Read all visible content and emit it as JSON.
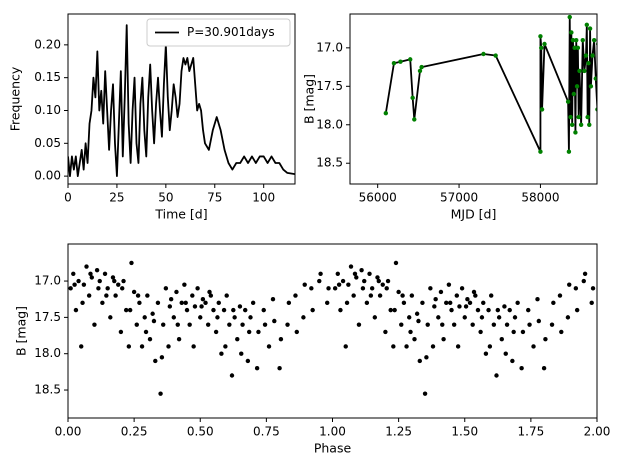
{
  "chart_data": [
    {
      "type": "line",
      "xlabel": "Time [d]",
      "ylabel": "Frequency",
      "legend": "upper right",
      "xlim": [
        0,
        116
      ],
      "ylim": [
        -0.012,
        0.247
      ],
      "xticks": [
        0,
        25,
        50,
        75,
        100
      ],
      "yticks": [
        {
          "value": 0,
          "label": "0.00"
        },
        {
          "value": 0.05,
          "label": "0.05"
        },
        {
          "value": 0.1,
          "label": "0.10"
        },
        {
          "value": 0.15,
          "label": "0.15"
        },
        {
          "value": 0.2,
          "label": "0.20"
        }
      ],
      "x": [
        0,
        1,
        2,
        3,
        4,
        5,
        6,
        7,
        8,
        9,
        10,
        11,
        12,
        13,
        14,
        15,
        16,
        17,
        18,
        19,
        20,
        21,
        22,
        23,
        24,
        25,
        26,
        27,
        28,
        29,
        30,
        31,
        32,
        33,
        34,
        35,
        36,
        37,
        38,
        39,
        40,
        41,
        42,
        43,
        44,
        45,
        46,
        47,
        48,
        49,
        50,
        51,
        52,
        53,
        54,
        55,
        56,
        57,
        58,
        59,
        60,
        61,
        62,
        63,
        64,
        65,
        66,
        67,
        68,
        69,
        70,
        72,
        74,
        76,
        78,
        80,
        82,
        84,
        86,
        88,
        90,
        92,
        94,
        96,
        98,
        100,
        102,
        104,
        106,
        108,
        110,
        112,
        114,
        116
      ],
      "series": [
        {
          "name": "P=30.901days",
          "color": "#000000",
          "values": [
            0.03,
            0.0,
            0.03,
            0.01,
            0.03,
            0.0,
            0.02,
            0.04,
            0.01,
            0.05,
            0.02,
            0.08,
            0.1,
            0.15,
            0.12,
            0.19,
            0.1,
            0.13,
            0.08,
            0.16,
            0.1,
            0.04,
            0.1,
            0.14,
            0.05,
            0.0,
            0.08,
            0.16,
            0.03,
            0.12,
            0.23,
            0.08,
            0.02,
            0.1,
            0.15,
            0.05,
            0.02,
            0.11,
            0.15,
            0.07,
            0.03,
            0.12,
            0.17,
            0.1,
            0.05,
            0.11,
            0.15,
            0.1,
            0.06,
            0.14,
            0.2,
            0.12,
            0.07,
            0.1,
            0.14,
            0.12,
            0.09,
            0.11,
            0.16,
            0.18,
            0.17,
            0.18,
            0.16,
            0.17,
            0.18,
            0.14,
            0.1,
            0.11,
            0.1,
            0.07,
            0.05,
            0.04,
            0.07,
            0.09,
            0.07,
            0.04,
            0.02,
            0.01,
            0.02,
            0.02,
            0.03,
            0.02,
            0.03,
            0.02,
            0.03,
            0.03,
            0.02,
            0.03,
            0.02,
            0.02,
            0.01,
            0.005,
            0.004,
            0.003
          ]
        }
      ]
    },
    {
      "type": "line",
      "xlabel": "MJD [d]",
      "ylabel": "B [mag]",
      "color": "#000000",
      "marker_color": "#008000",
      "xlim": [
        55660,
        58695
      ],
      "ylim": [
        18.77,
        16.56
      ],
      "xticks": [
        56000,
        57000,
        58000
      ],
      "yticks": [
        {
          "value": 17,
          "label": "17.0"
        },
        17.5,
        {
          "value": 18,
          "label": "18.0"
        },
        18.5
      ],
      "x": [
        56100,
        56200,
        56280,
        56400,
        56430,
        56450,
        56520,
        56540,
        57300,
        57450,
        58000,
        58000,
        58010,
        58020,
        58050,
        58340,
        58350,
        58360,
        58370,
        58380,
        58390,
        58400,
        58410,
        58420,
        58430,
        58440,
        58450,
        58460,
        58470,
        58480,
        58500,
        58520,
        58540,
        58560,
        58570,
        58580,
        58590,
        58600,
        58610,
        58620,
        58640,
        58660,
        58680,
        58700,
        58710,
        58720,
        58730,
        58740,
        58750,
        58760,
        58770,
        58780,
        58790
      ],
      "values": [
        17.85,
        17.2,
        17.18,
        17.15,
        17.65,
        17.93,
        17.3,
        17.25,
        17.08,
        17.1,
        18.35,
        16.85,
        17.0,
        17.8,
        16.95,
        17.7,
        18.35,
        16.6,
        17.9,
        16.8,
        18.0,
        16.9,
        17.6,
        17.0,
        18.1,
        16.9,
        17.5,
        17.0,
        17.9,
        17.3,
        18.0,
        16.9,
        17.3,
        17.1,
        16.7,
        17.9,
        17.2,
        18.0,
        16.75,
        17.5,
        17.1,
        16.9,
        17.4,
        17.8,
        16.95,
        17.6,
        16.7,
        17.9,
        17.2,
        17.4,
        16.85,
        17.7,
        17.9
      ]
    },
    {
      "type": "scatter",
      "xlabel": "Phase",
      "ylabel": "B [mag]",
      "color": "#000000",
      "xlim": [
        0,
        2
      ],
      "ylim": [
        18.885,
        16.49
      ],
      "xticks": [
        {
          "value": 0,
          "label": "0.00"
        },
        {
          "value": 0.25,
          "label": "0.25"
        },
        {
          "value": 0.5,
          "label": "0.50"
        },
        {
          "value": 0.75,
          "label": "0.75"
        },
        {
          "value": 1,
          "label": "1.00"
        },
        {
          "value": 1.25,
          "label": "1.25"
        },
        {
          "value": 1.5,
          "label": "1.50"
        },
        {
          "value": 1.75,
          "label": "1.75"
        },
        {
          "value": 2,
          "label": "2.00"
        }
      ],
      "yticks": [
        {
          "value": 17,
          "label": "17.0"
        },
        17.5,
        {
          "value": 18,
          "label": "18.0"
        },
        18.5
      ],
      "x": [
        0.01,
        0.02,
        0.03,
        0.04,
        0.05,
        0.06,
        0.07,
        0.08,
        0.09,
        0.1,
        0.11,
        0.12,
        0.13,
        0.14,
        0.15,
        0.16,
        0.17,
        0.18,
        0.19,
        0.2,
        0.21,
        0.22,
        0.23,
        0.24,
        0.25,
        0.26,
        0.27,
        0.28,
        0.29,
        0.3,
        0.31,
        0.32,
        0.33,
        0.34,
        0.35,
        0.36,
        0.37,
        0.38,
        0.39,
        0.4,
        0.41,
        0.42,
        0.43,
        0.44,
        0.45,
        0.46,
        0.47,
        0.48,
        0.49,
        0.5,
        0.51,
        0.52,
        0.53,
        0.54,
        0.55,
        0.56,
        0.57,
        0.58,
        0.59,
        0.6,
        0.61,
        0.62,
        0.63,
        0.64,
        0.65,
        0.66,
        0.67,
        0.68,
        0.69,
        0.7,
        0.72,
        0.74,
        0.76,
        0.78,
        0.8,
        0.83,
        0.86,
        0.89,
        0.92,
        0.95,
        0.98,
        0.025,
        0.055,
        0.085,
        0.115,
        0.145,
        0.175,
        0.205,
        0.235,
        0.265,
        0.295,
        0.325,
        0.355,
        0.385,
        0.415,
        0.445,
        0.475,
        0.505,
        0.535,
        0.565,
        0.595,
        0.625,
        0.655,
        0.685,
        0.715,
        0.745,
        0.775,
        0.805,
        0.835,
        0.865,
        0.895,
        0.925,
        0.955,
        0.985,
        1.01,
        1.02,
        1.03,
        1.04,
        1.05,
        1.06,
        1.07,
        1.08,
        1.09,
        1.1,
        1.11,
        1.12,
        1.13,
        1.14,
        1.15,
        1.16,
        1.17,
        1.18,
        1.19,
        1.2,
        1.21,
        1.22,
        1.23,
        1.24,
        1.25,
        1.26,
        1.27,
        1.28,
        1.29,
        1.3,
        1.31,
        1.32,
        1.33,
        1.34,
        1.35,
        1.36,
        1.37,
        1.38,
        1.39,
        1.4,
        1.41,
        1.42,
        1.43,
        1.44,
        1.45,
        1.46,
        1.47,
        1.48,
        1.49,
        1.5,
        1.51,
        1.52,
        1.53,
        1.54,
        1.55,
        1.56,
        1.57,
        1.58,
        1.59,
        1.6,
        1.61,
        1.62,
        1.63,
        1.64,
        1.65,
        1.66,
        1.67,
        1.68,
        1.69,
        1.7,
        1.72,
        1.74,
        1.76,
        1.78,
        1.8,
        1.83,
        1.86,
        1.89,
        1.92,
        1.95,
        1.98,
        1.025,
        1.055,
        1.085,
        1.115,
        1.145,
        1.175,
        1.205,
        1.235,
        1.265,
        1.295,
        1.325,
        1.355,
        1.385,
        1.415,
        1.445,
        1.475,
        1.505,
        1.535,
        1.565,
        1.595,
        1.625,
        1.655,
        1.685,
        1.715,
        1.745,
        1.775,
        1.805,
        1.835,
        1.865,
        1.895,
        1.925,
        1.955,
        1.985
      ],
      "y": [
        17.1,
        16.9,
        17.4,
        17.0,
        17.9,
        17.05,
        16.8,
        17.2,
        16.95,
        17.6,
        16.85,
        17.0,
        17.3,
        16.9,
        17.1,
        17.5,
        16.95,
        17.2,
        17.05,
        17.7,
        17.0,
        17.4,
        17.9,
        16.75,
        17.15,
        17.6,
        17.3,
        17.9,
        17.5,
        17.2,
        17.8,
        17.45,
        18.1,
        17.3,
        18.55,
        17.6,
        17.1,
        17.9,
        17.25,
        17.5,
        17.15,
        17.8,
        17.3,
        17.05,
        17.4,
        17.6,
        17.2,
        17.35,
        17.1,
        17.5,
        17.25,
        17.3,
        17.6,
        17.2,
        17.4,
        17.7,
        17.3,
        18.0,
        17.4,
        17.2,
        17.6,
        18.3,
        17.5,
        17.8,
        17.35,
        17.6,
        17.4,
        18.1,
        17.5,
        17.3,
        17.7,
        17.4,
        17.9,
        17.55,
        18.2,
        17.6,
        17.2,
        17.5,
        17.1,
        17.0,
        17.3,
        17.05,
        17.3,
        16.9,
        17.1,
        17.2,
        17.0,
        17.1,
        17.4,
        17.2,
        17.7,
        17.55,
        18.05,
        17.35,
        17.6,
        17.3,
        17.9,
        17.35,
        17.15,
        17.5,
        17.9,
        17.4,
        18.0,
        17.7,
        18.2,
        17.6,
        17.25,
        17.8,
        17.3,
        17.7,
        17.05,
        17.4,
        16.9,
        17.1,
        17.1,
        16.9,
        17.4,
        17.0,
        17.9,
        17.05,
        16.8,
        17.2,
        16.95,
        17.6,
        16.85,
        17.0,
        17.3,
        16.9,
        17.1,
        17.5,
        16.95,
        17.2,
        17.05,
        17.7,
        17.0,
        17.4,
        17.9,
        16.75,
        17.15,
        17.6,
        17.3,
        17.9,
        17.5,
        17.2,
        17.8,
        17.45,
        18.1,
        17.3,
        18.55,
        17.6,
        17.1,
        17.9,
        17.25,
        17.5,
        17.15,
        17.8,
        17.3,
        17.05,
        17.4,
        17.6,
        17.2,
        17.35,
        17.1,
        17.5,
        17.25,
        17.3,
        17.6,
        17.2,
        17.4,
        17.7,
        17.3,
        18.0,
        17.4,
        17.2,
        17.6,
        18.3,
        17.5,
        17.8,
        17.35,
        17.6,
        17.4,
        18.1,
        17.5,
        17.3,
        17.7,
        17.4,
        17.9,
        17.55,
        18.2,
        17.6,
        17.2,
        17.5,
        17.1,
        17.0,
        17.3,
        17.05,
        17.3,
        16.9,
        17.1,
        17.2,
        17.0,
        17.1,
        17.4,
        17.2,
        17.7,
        17.55,
        18.05,
        17.35,
        17.6,
        17.3,
        17.9,
        17.35,
        17.15,
        17.5,
        17.9,
        17.4,
        18.0,
        17.7,
        18.2,
        17.6,
        17.25,
        17.8,
        17.3,
        17.7,
        17.05,
        17.4,
        16.9,
        17.1
      ]
    }
  ]
}
